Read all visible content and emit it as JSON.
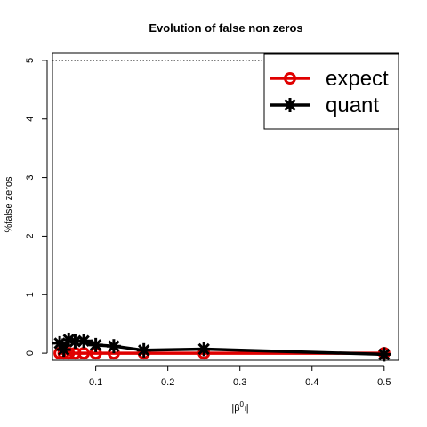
{
  "chart_data": {
    "type": "line",
    "title": "Evolution of false non zeros",
    "ylabel": "%false zeros",
    "xlabel": "|β⁰ᵢ|",
    "xlabel_base": "|β",
    "xlabel_sup": "0",
    "xlabel_sub": "i",
    "xlabel_end": "|",
    "xlim": [
      0.04,
      0.52
    ],
    "ylim": [
      -0.12,
      5.12
    ],
    "x_ticks": [
      0.1,
      0.2,
      0.3,
      0.4,
      0.5
    ],
    "x_tick_labels": [
      "0.1",
      "0.2",
      "0.3",
      "0.4",
      "0.5"
    ],
    "y_ticks": [
      0,
      1,
      2,
      3,
      4,
      5
    ],
    "y_tick_labels": [
      "0",
      "1",
      "2",
      "3",
      "4",
      "5"
    ],
    "reference_line": {
      "y": 5,
      "style": "dotted"
    },
    "grid": false,
    "legend_position": "top-right",
    "series": [
      {
        "name": "expect",
        "color": "#e00000",
        "marker": "circle",
        "x": [
          0.05,
          0.0556,
          0.0625,
          0.0714,
          0.0833,
          0.1,
          0.125,
          0.1667,
          0.25,
          0.5
        ],
        "y": [
          0,
          0,
          0,
          0,
          0,
          0,
          0,
          0,
          0,
          0
        ]
      },
      {
        "name": "quant",
        "color": "#000000",
        "marker": "star",
        "x": [
          0.05,
          0.0556,
          0.0625,
          0.0714,
          0.0833,
          0.1,
          0.125,
          0.1667,
          0.25,
          0.5
        ],
        "y": [
          0.17,
          0.06,
          0.23,
          0.2,
          0.21,
          0.14,
          0.12,
          0.05,
          0.07,
          -0.02
        ]
      }
    ]
  }
}
